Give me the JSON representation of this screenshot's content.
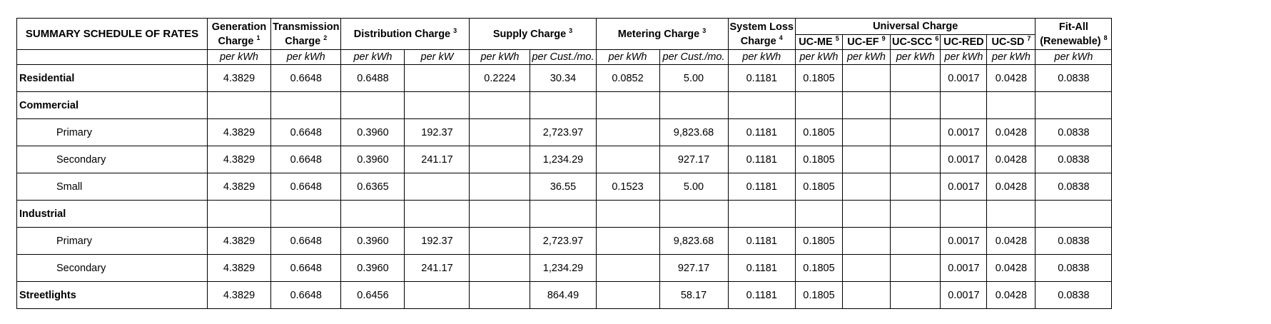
{
  "title": "SUMMARY SCHEDULE OF RATES",
  "headers": {
    "generation": {
      "l1": "Generation",
      "l2": "Charge",
      "sup": "1"
    },
    "transmission": {
      "l1": "Transmission",
      "l2": "Charge",
      "sup": "2"
    },
    "distribution": {
      "label": "Distribution Charge",
      "sup": "3"
    },
    "supply": {
      "label": "Supply Charge",
      "sup": "3"
    },
    "metering": {
      "label": "Metering Charge",
      "sup": "3"
    },
    "system_loss": {
      "l1": "System Loss",
      "l2": "Charge",
      "sup": "4"
    },
    "universal": {
      "label": "Universal Charge"
    },
    "uc_me": {
      "label": "UC-ME",
      "sup": "5"
    },
    "uc_ef": {
      "label": "UC-EF",
      "sup": "9"
    },
    "uc_scc": {
      "label": "UC-SCC",
      "sup": "6"
    },
    "uc_red": {
      "label": "UC-RED"
    },
    "uc_sd": {
      "label": "UC-SD",
      "sup": "7"
    },
    "fit_all": {
      "l1": "Fit-All",
      "l2": "(Renewable)",
      "sup": "8"
    }
  },
  "units": [
    "per kWh",
    "per kWh",
    "per kWh",
    "per kW",
    "per kWh",
    "per Cust./mo.",
    "per kWh",
    "per Cust./mo.",
    "per kWh",
    "per kWh",
    "per kWh",
    "per kWh",
    "per kWh",
    "per kWh",
    "per kWh"
  ],
  "rows": [
    {
      "label": "Residential",
      "type": "cat",
      "values": [
        "4.3829",
        "0.6648",
        "0.6488",
        "",
        "0.2224",
        "30.34",
        "0.0852",
        "5.00",
        "0.1181",
        "0.1805",
        "",
        "",
        "0.0017",
        "0.0428",
        "0.0838"
      ]
    },
    {
      "label": "Commercial",
      "type": "cat",
      "values": [
        "",
        "",
        "",
        "",
        "",
        "",
        "",
        "",
        "",
        "",
        "",
        "",
        "",
        "",
        ""
      ]
    },
    {
      "label": "Primary",
      "type": "sub",
      "values": [
        "4.3829",
        "0.6648",
        "0.3960",
        "192.37",
        "",
        "2,723.97",
        "",
        "9,823.68",
        "0.1181",
        "0.1805",
        "",
        "",
        "0.0017",
        "0.0428",
        "0.0838"
      ]
    },
    {
      "label": "Secondary",
      "type": "sub",
      "values": [
        "4.3829",
        "0.6648",
        "0.3960",
        "241.17",
        "",
        "1,234.29",
        "",
        "927.17",
        "0.1181",
        "0.1805",
        "",
        "",
        "0.0017",
        "0.0428",
        "0.0838"
      ]
    },
    {
      "label": "Small",
      "type": "sub",
      "values": [
        "4.3829",
        "0.6648",
        "0.6365",
        "",
        "",
        "36.55",
        "0.1523",
        "5.00",
        "0.1181",
        "0.1805",
        "",
        "",
        "0.0017",
        "0.0428",
        "0.0838"
      ]
    },
    {
      "label": "Industrial",
      "type": "cat",
      "values": [
        "",
        "",
        "",
        "",
        "",
        "",
        "",
        "",
        "",
        "",
        "",
        "",
        "",
        "",
        ""
      ]
    },
    {
      "label": "Primary",
      "type": "sub",
      "values": [
        "4.3829",
        "0.6648",
        "0.3960",
        "192.37",
        "",
        "2,723.97",
        "",
        "9,823.68",
        "0.1181",
        "0.1805",
        "",
        "",
        "0.0017",
        "0.0428",
        "0.0838"
      ]
    },
    {
      "label": "Secondary",
      "type": "sub",
      "values": [
        "4.3829",
        "0.6648",
        "0.3960",
        "241.17",
        "",
        "1,234.29",
        "",
        "927.17",
        "0.1181",
        "0.1805",
        "",
        "",
        "0.0017",
        "0.0428",
        "0.0838"
      ]
    },
    {
      "label": "Streetlights",
      "type": "cat",
      "values": [
        "4.3829",
        "0.6648",
        "0.6456",
        "",
        "",
        "864.49",
        "",
        "58.17",
        "0.1181",
        "0.1805",
        "",
        "",
        "0.0017",
        "0.0428",
        "0.0838"
      ]
    }
  ]
}
